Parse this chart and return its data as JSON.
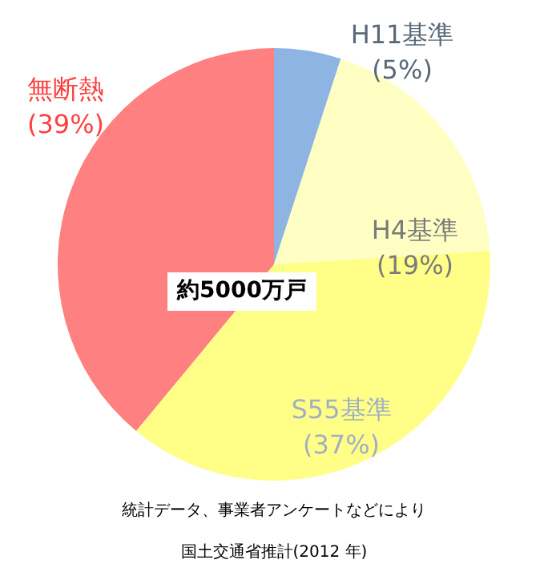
{
  "chart_data": {
    "type": "pie",
    "categories": [
      "H11基準",
      "H4基準",
      "S55基準",
      "無断熱"
    ],
    "values": [
      5,
      19,
      37,
      39
    ],
    "value_labels": [
      "(5%)",
      "(19%)",
      "(37%)",
      "(39%)"
    ],
    "colors": [
      "#8db4e2",
      "#ffffc4",
      "#ffff88",
      "#ff8080"
    ],
    "annotations": [
      "約5000万戸",
      "統計データ、事業者アンケートなどにより",
      "国土交通省推計(2012 年)"
    ],
    "legend": false
  }
}
